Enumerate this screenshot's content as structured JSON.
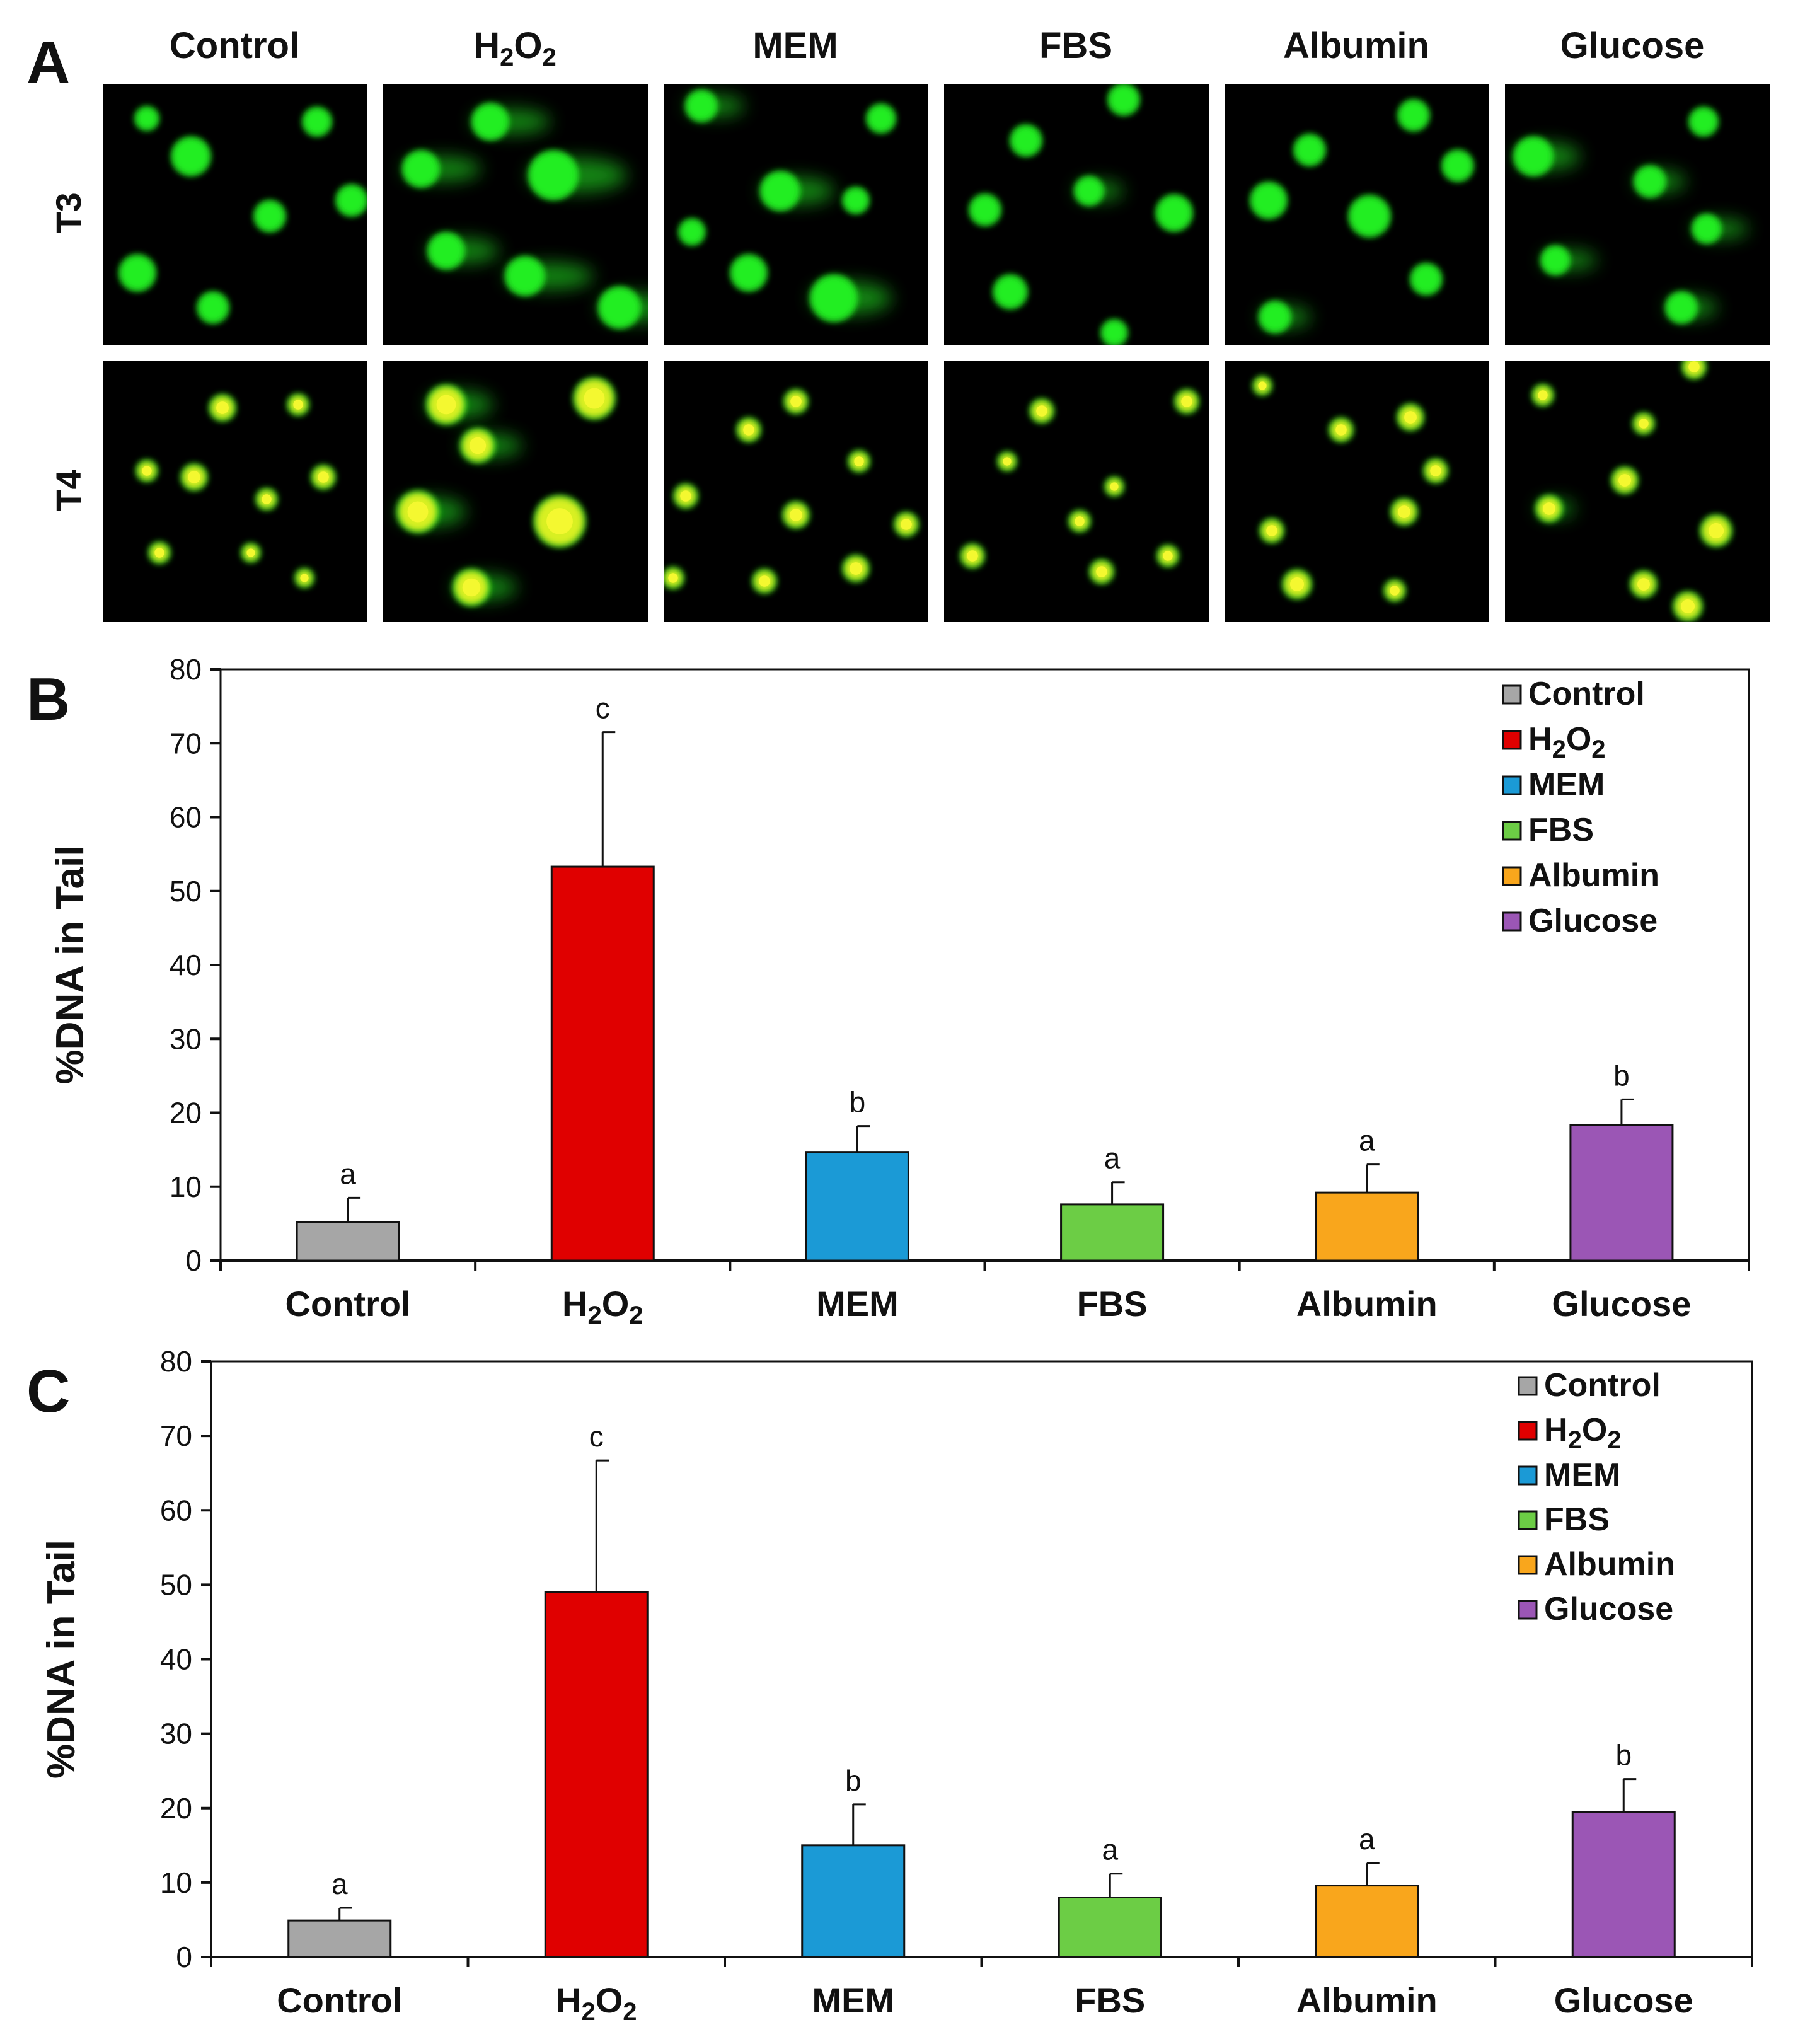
{
  "panel_labels": [
    "A",
    "B",
    "C"
  ],
  "micrographs": {
    "columns": [
      {
        "label": "Control"
      },
      {
        "label": "H",
        "sub1": "2",
        "mid": "O",
        "sub2": "2"
      },
      {
        "label": "MEM"
      },
      {
        "label": "FBS"
      },
      {
        "label": "Albumin"
      },
      {
        "label": "Glucose"
      }
    ],
    "rows": [
      "T3",
      "T4"
    ],
    "colors": {
      "background": "#000000",
      "nucleus_t3": "#22ee22",
      "nucleus_t4": "#d8f020"
    }
  },
  "chart_data": [
    {
      "panel": "B",
      "type": "bar",
      "categories": [
        "Control",
        "H2O2",
        "MEM",
        "FBS",
        "Albumin",
        "Glucose"
      ],
      "category_display": [
        {
          "main": "Control"
        },
        {
          "main": "H",
          "sub1": "2",
          "mid": "O",
          "sub2": "2"
        },
        {
          "main": "MEM"
        },
        {
          "main": "FBS"
        },
        {
          "main": "Albumin"
        },
        {
          "main": "Glucose"
        }
      ],
      "values": [
        5.2,
        53.3,
        14.7,
        7.6,
        9.2,
        18.3
      ],
      "errors": [
        3.3,
        18.2,
        3.5,
        3.0,
        3.8,
        3.5
      ],
      "significance": [
        "a",
        "c",
        "b",
        "a",
        "a",
        "b"
      ],
      "colors": [
        "#a6a6a6",
        "#e00000",
        "#1b9ad6",
        "#6ccd45",
        "#f9a61c",
        "#9b56b5"
      ],
      "ylabel": "%DNA in Tail",
      "ylim": [
        0,
        80
      ],
      "yticks": [
        0,
        10,
        20,
        30,
        40,
        50,
        60,
        70,
        80
      ],
      "legend": {
        "position": "top-right",
        "entries": [
          {
            "main": "Control"
          },
          {
            "main": "H",
            "sub1": "2",
            "mid": "O",
            "sub2": "2"
          },
          {
            "main": "MEM"
          },
          {
            "main": "FBS"
          },
          {
            "main": "Albumin"
          },
          {
            "main": "Glucose"
          }
        ]
      }
    },
    {
      "panel": "C",
      "type": "bar",
      "categories": [
        "Control",
        "H2O2",
        "MEM",
        "FBS",
        "Albumin",
        "Glucose"
      ],
      "category_display": [
        {
          "main": "Control"
        },
        {
          "main": "H",
          "sub1": "2",
          "mid": "O",
          "sub2": "2"
        },
        {
          "main": "MEM"
        },
        {
          "main": "FBS"
        },
        {
          "main": "Albumin"
        },
        {
          "main": "Glucose"
        }
      ],
      "values": [
        4.9,
        49.0,
        15.0,
        8.0,
        9.6,
        19.5
      ],
      "errors": [
        1.7,
        17.7,
        5.5,
        3.2,
        3.0,
        4.4
      ],
      "significance": [
        "a",
        "c",
        "b",
        "a",
        "a",
        "b"
      ],
      "colors": [
        "#a6a6a6",
        "#e00000",
        "#1b9ad6",
        "#6ccd45",
        "#f9a61c",
        "#9b56b5"
      ],
      "ylabel": "%DNA in Tail",
      "ylim": [
        0,
        80
      ],
      "yticks": [
        0,
        10,
        20,
        30,
        40,
        50,
        60,
        70,
        80
      ],
      "legend": {
        "position": "top-right",
        "entries": [
          {
            "main": "Control"
          },
          {
            "main": "H",
            "sub1": "2",
            "mid": "O",
            "sub2": "2"
          },
          {
            "main": "MEM"
          },
          {
            "main": "FBS"
          },
          {
            "main": "Albumin"
          },
          {
            "main": "Glucose"
          }
        ]
      }
    }
  ]
}
